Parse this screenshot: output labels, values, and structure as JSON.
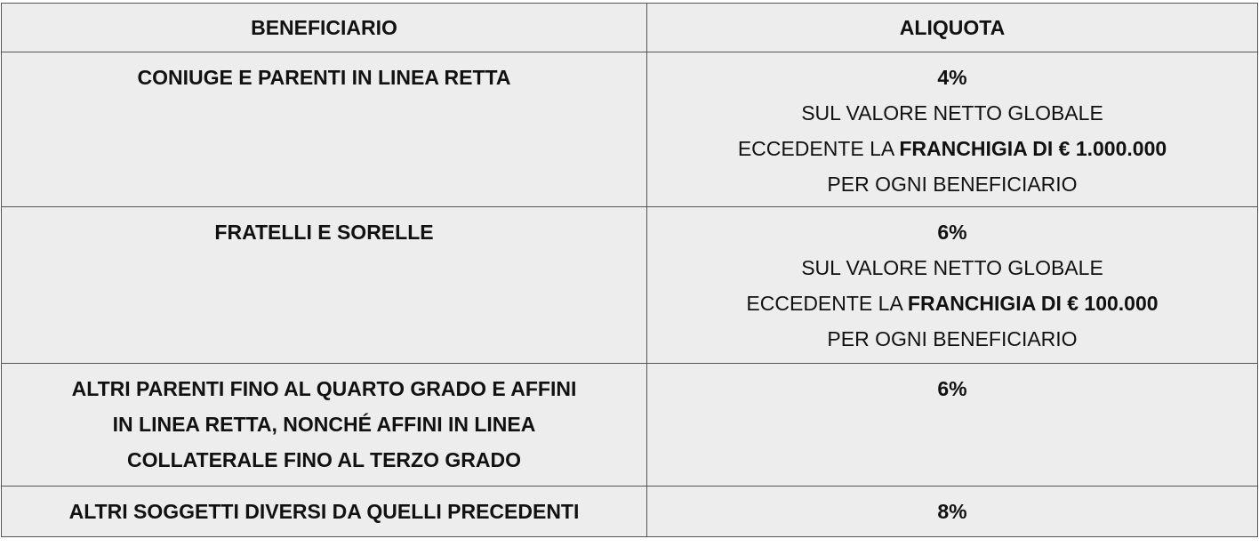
{
  "table": {
    "header": [
      "BENEFICIARIO",
      "ALIQUOTA"
    ],
    "rows": [
      {
        "beneficiario": [
          "CONIUGE E PARENTI IN LINEA RETTA"
        ],
        "aliquota": "4%",
        "detail": {
          "line1": "SUL VALORE NETTO GLOBALE",
          "line2": "ECCEDENTE LA",
          "line2_bold": "FRANCHIGIA DI € 1.000.000",
          "line3": "PER OGNI BENEFICIARIO"
        }
      },
      {
        "beneficiario": [
          "FRATELLI E SORELLE"
        ],
        "aliquota": "6%",
        "detail": {
          "line1": "SUL VALORE NETTO GLOBALE",
          "line2": "ECCEDENTE LA",
          "line2_bold": "FRANCHIGIA DI € 100.000",
          "line3": "PER OGNI BENEFICIARIO"
        }
      },
      {
        "beneficiario": [
          "ALTRI PARENTI FINO AL QUARTO GRADO E AFFINI",
          "IN LINEA RETTA, NONCHÉ AFFINI IN LINEA",
          "COLLATERALE FINO AL TERZO GRADO"
        ],
        "aliquota": "6%"
      },
      {
        "beneficiario": [
          "ALTRI SOGGETTI DIVERSI DA QUELLI PRECEDENTI"
        ],
        "aliquota": "8%"
      }
    ]
  }
}
